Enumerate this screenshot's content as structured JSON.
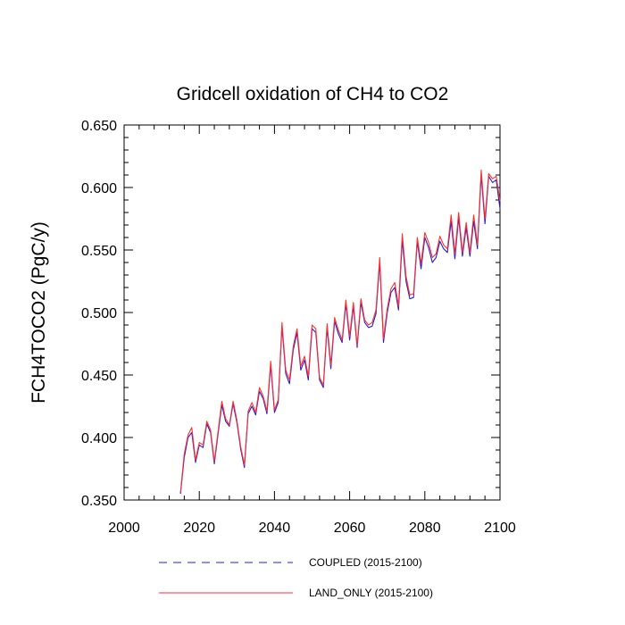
{
  "chart_data": {
    "type": "line",
    "title": "Gridcell oxidation of CH4 to CO2",
    "xlabel": "",
    "ylabel": "FCH4TOCO2  (PgC/y)",
    "xlim": [
      2000,
      2100
    ],
    "ylim": [
      0.35,
      0.65
    ],
    "x_ticks": [
      "2000",
      "2020",
      "2040",
      "2060",
      "2080",
      "2100"
    ],
    "y_ticks": [
      "0.350",
      "0.400",
      "0.450",
      "0.500",
      "0.550",
      "0.600",
      "0.650"
    ],
    "grid": false,
    "legend_position": "bottom",
    "colors": {
      "coupled": "#2020d0",
      "land_only": "#ff3030"
    },
    "x": [
      2015,
      2016,
      2017,
      2018,
      2019,
      2020,
      2021,
      2022,
      2023,
      2024,
      2025,
      2026,
      2027,
      2028,
      2029,
      2030,
      2031,
      2032,
      2033,
      2034,
      2035,
      2036,
      2037,
      2038,
      2039,
      2040,
      2041,
      2042,
      2043,
      2044,
      2045,
      2046,
      2047,
      2048,
      2049,
      2050,
      2051,
      2052,
      2053,
      2054,
      2055,
      2056,
      2057,
      2058,
      2059,
      2060,
      2061,
      2062,
      2063,
      2064,
      2065,
      2066,
      2067,
      2068,
      2069,
      2070,
      2071,
      2072,
      2073,
      2074,
      2075,
      2076,
      2077,
      2078,
      2079,
      2080,
      2081,
      2082,
      2083,
      2084,
      2085,
      2086,
      2087,
      2088,
      2089,
      2090,
      2091,
      2092,
      2093,
      2094,
      2095,
      2096,
      2097,
      2098,
      2099,
      2100
    ],
    "series": [
      {
        "name": "COUPLED (2015-2100)",
        "style": "dashed",
        "values": [
          0.355,
          0.384,
          0.4,
          0.404,
          0.38,
          0.394,
          0.392,
          0.411,
          0.404,
          0.379,
          0.403,
          0.426,
          0.413,
          0.409,
          0.427,
          0.412,
          0.391,
          0.376,
          0.419,
          0.425,
          0.418,
          0.437,
          0.431,
          0.419,
          0.458,
          0.42,
          0.428,
          0.489,
          0.451,
          0.443,
          0.47,
          0.484,
          0.454,
          0.462,
          0.446,
          0.487,
          0.484,
          0.446,
          0.44,
          0.488,
          0.455,
          0.493,
          0.483,
          0.476,
          0.507,
          0.478,
          0.505,
          0.472,
          0.508,
          0.492,
          0.488,
          0.489,
          0.499,
          0.54,
          0.476,
          0.5,
          0.516,
          0.52,
          0.502,
          0.558,
          0.525,
          0.511,
          0.512,
          0.557,
          0.535,
          0.56,
          0.552,
          0.54,
          0.544,
          0.557,
          0.551,
          0.548,
          0.573,
          0.543,
          0.576,
          0.545,
          0.568,
          0.545,
          0.573,
          0.551,
          0.61,
          0.571,
          0.609,
          0.604,
          0.606,
          0.583
        ]
      },
      {
        "name": "LAND_ONLY (2015-2100)",
        "style": "solid",
        "values": [
          0.356,
          0.387,
          0.402,
          0.408,
          0.382,
          0.396,
          0.394,
          0.413,
          0.406,
          0.381,
          0.405,
          0.429,
          0.415,
          0.41,
          0.429,
          0.414,
          0.393,
          0.378,
          0.421,
          0.428,
          0.42,
          0.44,
          0.433,
          0.421,
          0.461,
          0.422,
          0.43,
          0.492,
          0.454,
          0.446,
          0.473,
          0.487,
          0.457,
          0.465,
          0.449,
          0.49,
          0.487,
          0.448,
          0.442,
          0.491,
          0.458,
          0.496,
          0.486,
          0.478,
          0.51,
          0.481,
          0.508,
          0.474,
          0.511,
          0.494,
          0.49,
          0.492,
          0.502,
          0.544,
          0.479,
          0.503,
          0.519,
          0.524,
          0.505,
          0.563,
          0.529,
          0.514,
          0.515,
          0.56,
          0.539,
          0.564,
          0.556,
          0.544,
          0.547,
          0.561,
          0.554,
          0.551,
          0.578,
          0.547,
          0.58,
          0.548,
          0.572,
          0.548,
          0.578,
          0.554,
          0.614,
          0.575,
          0.611,
          0.607,
          0.609,
          0.589
        ]
      }
    ]
  }
}
